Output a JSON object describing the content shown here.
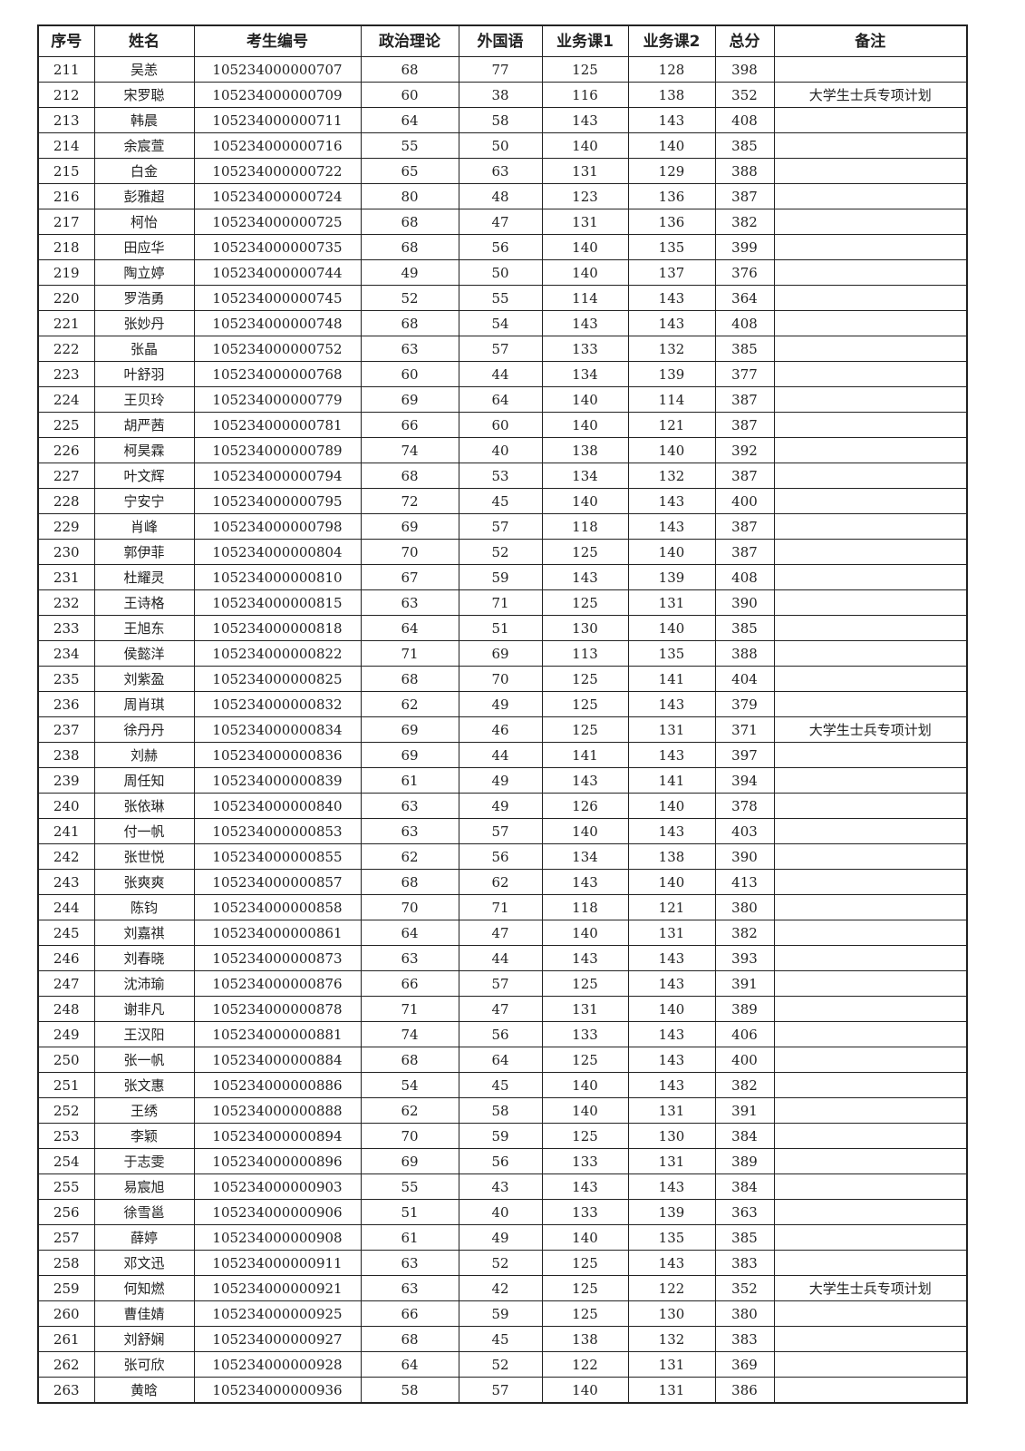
{
  "headers": [
    "序号",
    "姓名",
    "考生编号",
    "政治理论",
    "外国语",
    "业务课1",
    "业务课2",
    "总分",
    "备注"
  ],
  "rows": [
    [
      "211",
      "吴恙",
      "105234000000707",
      "68",
      "77",
      "125",
      "128",
      "398",
      ""
    ],
    [
      "212",
      "宋罗聪",
      "105234000000709",
      "60",
      "38",
      "116",
      "138",
      "352",
      "大学生士兵专项计划"
    ],
    [
      "213",
      "韩晨",
      "105234000000711",
      "64",
      "58",
      "143",
      "143",
      "408",
      ""
    ],
    [
      "214",
      "余宸萱",
      "105234000000716",
      "55",
      "50",
      "140",
      "140",
      "385",
      ""
    ],
    [
      "215",
      "白金",
      "105234000000722",
      "65",
      "63",
      "131",
      "129",
      "388",
      ""
    ],
    [
      "216",
      "彭雅超",
      "105234000000724",
      "80",
      "48",
      "123",
      "136",
      "387",
      ""
    ],
    [
      "217",
      "柯怡",
      "105234000000725",
      "68",
      "47",
      "131",
      "136",
      "382",
      ""
    ],
    [
      "218",
      "田应华",
      "105234000000735",
      "68",
      "56",
      "140",
      "135",
      "399",
      ""
    ],
    [
      "219",
      "陶立婷",
      "105234000000744",
      "49",
      "50",
      "140",
      "137",
      "376",
      ""
    ],
    [
      "220",
      "罗浩勇",
      "105234000000745",
      "52",
      "55",
      "114",
      "143",
      "364",
      ""
    ],
    [
      "221",
      "张妙丹",
      "105234000000748",
      "68",
      "54",
      "143",
      "143",
      "408",
      ""
    ],
    [
      "222",
      "张晶",
      "105234000000752",
      "63",
      "57",
      "133",
      "132",
      "385",
      ""
    ],
    [
      "223",
      "叶舒羽",
      "105234000000768",
      "60",
      "44",
      "134",
      "139",
      "377",
      ""
    ],
    [
      "224",
      "王贝玲",
      "105234000000779",
      "69",
      "64",
      "140",
      "114",
      "387",
      ""
    ],
    [
      "225",
      "胡严茜",
      "105234000000781",
      "66",
      "60",
      "140",
      "121",
      "387",
      ""
    ],
    [
      "226",
      "柯昊霖",
      "105234000000789",
      "74",
      "40",
      "138",
      "140",
      "392",
      ""
    ],
    [
      "227",
      "叶文辉",
      "105234000000794",
      "68",
      "53",
      "134",
      "132",
      "387",
      ""
    ],
    [
      "228",
      "宁安宁",
      "105234000000795",
      "72",
      "45",
      "140",
      "143",
      "400",
      ""
    ],
    [
      "229",
      "肖峰",
      "105234000000798",
      "69",
      "57",
      "118",
      "143",
      "387",
      ""
    ],
    [
      "230",
      "郭伊菲",
      "105234000000804",
      "70",
      "52",
      "125",
      "140",
      "387",
      ""
    ],
    [
      "231",
      "杜耀灵",
      "105234000000810",
      "67",
      "59",
      "143",
      "139",
      "408",
      ""
    ],
    [
      "232",
      "王诗格",
      "105234000000815",
      "63",
      "71",
      "125",
      "131",
      "390",
      ""
    ],
    [
      "233",
      "王旭东",
      "105234000000818",
      "64",
      "51",
      "130",
      "140",
      "385",
      ""
    ],
    [
      "234",
      "侯懿洋",
      "105234000000822",
      "71",
      "69",
      "113",
      "135",
      "388",
      ""
    ],
    [
      "235",
      "刘紫盈",
      "105234000000825",
      "68",
      "70",
      "125",
      "141",
      "404",
      ""
    ],
    [
      "236",
      "周肖琪",
      "105234000000832",
      "62",
      "49",
      "125",
      "143",
      "379",
      ""
    ],
    [
      "237",
      "徐丹丹",
      "105234000000834",
      "69",
      "46",
      "125",
      "131",
      "371",
      "大学生士兵专项计划"
    ],
    [
      "238",
      "刘赫",
      "105234000000836",
      "69",
      "44",
      "141",
      "143",
      "397",
      ""
    ],
    [
      "239",
      "周任知",
      "105234000000839",
      "61",
      "49",
      "143",
      "141",
      "394",
      ""
    ],
    [
      "240",
      "张依琳",
      "105234000000840",
      "63",
      "49",
      "126",
      "140",
      "378",
      ""
    ],
    [
      "241",
      "付一帆",
      "105234000000853",
      "63",
      "57",
      "140",
      "143",
      "403",
      ""
    ],
    [
      "242",
      "张世悦",
      "105234000000855",
      "62",
      "56",
      "134",
      "138",
      "390",
      ""
    ],
    [
      "243",
      "张爽爽",
      "105234000000857",
      "68",
      "62",
      "143",
      "140",
      "413",
      ""
    ],
    [
      "244",
      "陈钧",
      "105234000000858",
      "70",
      "71",
      "118",
      "121",
      "380",
      ""
    ],
    [
      "245",
      "刘嘉祺",
      "105234000000861",
      "64",
      "47",
      "140",
      "131",
      "382",
      ""
    ],
    [
      "246",
      "刘春晓",
      "105234000000873",
      "63",
      "44",
      "143",
      "143",
      "393",
      ""
    ],
    [
      "247",
      "沈沛瑜",
      "105234000000876",
      "66",
      "57",
      "125",
      "143",
      "391",
      ""
    ],
    [
      "248",
      "谢非凡",
      "105234000000878",
      "71",
      "47",
      "131",
      "140",
      "389",
      ""
    ],
    [
      "249",
      "王汉阳",
      "105234000000881",
      "74",
      "56",
      "133",
      "143",
      "406",
      ""
    ],
    [
      "250",
      "张一帆",
      "105234000000884",
      "68",
      "64",
      "125",
      "143",
      "400",
      ""
    ],
    [
      "251",
      "张文惠",
      "105234000000886",
      "54",
      "45",
      "140",
      "143",
      "382",
      ""
    ],
    [
      "252",
      "王绣",
      "105234000000888",
      "62",
      "58",
      "140",
      "131",
      "391",
      ""
    ],
    [
      "253",
      "李颖",
      "105234000000894",
      "70",
      "59",
      "125",
      "130",
      "384",
      ""
    ],
    [
      "254",
      "于志雯",
      "105234000000896",
      "69",
      "56",
      "133",
      "131",
      "389",
      ""
    ],
    [
      "255",
      "易宸旭",
      "105234000000903",
      "55",
      "43",
      "143",
      "143",
      "384",
      ""
    ],
    [
      "256",
      "徐雪邕",
      "105234000000906",
      "51",
      "40",
      "133",
      "139",
      "363",
      ""
    ],
    [
      "257",
      "薛婷",
      "105234000000908",
      "61",
      "49",
      "140",
      "135",
      "385",
      ""
    ],
    [
      "258",
      "邓文迅",
      "105234000000911",
      "63",
      "52",
      "125",
      "143",
      "383",
      ""
    ],
    [
      "259",
      "何知燃",
      "105234000000921",
      "63",
      "42",
      "125",
      "122",
      "352",
      "大学生士兵专项计划"
    ],
    [
      "260",
      "曹佳婧",
      "105234000000925",
      "66",
      "59",
      "125",
      "130",
      "380",
      ""
    ],
    [
      "261",
      "刘舒娴",
      "105234000000927",
      "68",
      "45",
      "138",
      "132",
      "383",
      ""
    ],
    [
      "262",
      "张可欣",
      "105234000000928",
      "64",
      "52",
      "122",
      "131",
      "369",
      ""
    ],
    [
      "263",
      "黄晗",
      "105234000000936",
      "58",
      "57",
      "140",
      "131",
      "386",
      ""
    ]
  ]
}
